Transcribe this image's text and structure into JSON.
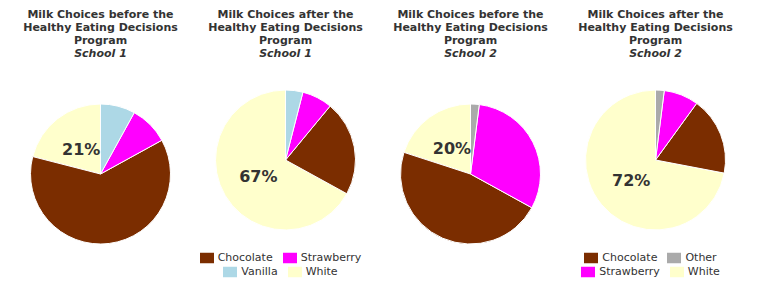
{
  "chart_data": [
    {
      "type": "pie",
      "title": "Milk Choices before the Healthy Eating Decisions Program",
      "subtitle": "School 1",
      "categories": [
        "White",
        "Chocolate",
        "Strawberry",
        "Vanilla"
      ],
      "values": [
        21,
        62,
        9,
        8
      ],
      "colors": [
        "#FFFFCC",
        "#7B2D00",
        "#FF00FF",
        "#ADD8E6"
      ],
      "data_labels": true,
      "value_labels": [
        "21%",
        null,
        null,
        null
      ]
    },
    {
      "type": "pie",
      "title": "Milk Choices after the Healthy Eating Decisions Program",
      "subtitle": "School 1",
      "categories": [
        "White",
        "Chocolate",
        "Strawberry",
        "Vanilla"
      ],
      "values": [
        67,
        22,
        7,
        4
      ],
      "colors": [
        "#FFFFCC",
        "#7B2D00",
        "#FF00FF",
        "#ADD8E6"
      ],
      "data_labels": true,
      "value_labels": [
        "67%",
        null,
        null,
        null
      ],
      "legend": "bottom"
    },
    {
      "type": "pie",
      "title": "Milk Choices before the Healthy Eating Decisions Program",
      "subtitle": "School 2",
      "categories": [
        "White",
        "Chocolate",
        "Strawberry",
        "Other"
      ],
      "values": [
        20,
        47,
        31,
        2
      ],
      "colors": [
        "#FFFFCC",
        "#7B2D00",
        "#FF00FF",
        "#AAAAAA"
      ],
      "data_labels": true,
      "value_labels": [
        "20%",
        null,
        null,
        null
      ]
    },
    {
      "type": "pie",
      "title": "Milk Choices after the Healthy Eating Decisions Program",
      "subtitle": "School 2",
      "categories": [
        "White",
        "Chocolate",
        "Strawberry",
        "Other"
      ],
      "values": [
        72,
        18,
        8,
        2
      ],
      "colors": [
        "#FFFFCC",
        "#7B2D00",
        "#FF00FF",
        "#AAAAAA"
      ],
      "data_labels": true,
      "value_labels": [
        "72%",
        null,
        null,
        null
      ],
      "legend": "bottom"
    }
  ]
}
